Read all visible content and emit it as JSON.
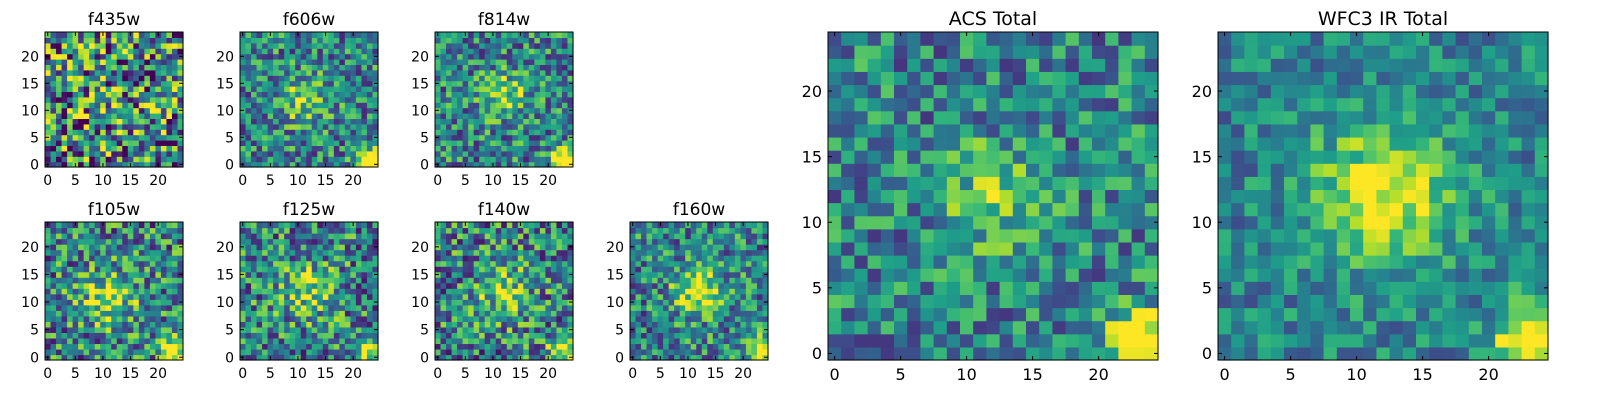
{
  "chart_data": [
    {
      "type": "heatmap",
      "title": "f435w",
      "xlim": [
        0,
        24
      ],
      "ylim": [
        0,
        24
      ],
      "xticks": [
        0,
        5,
        10,
        15,
        20
      ],
      "yticks": [
        0,
        5,
        10,
        15,
        20
      ],
      "grid": false,
      "colormap": "viridis",
      "seed": 11,
      "noise": 0.55,
      "blobs": [
        {
          "x": 12,
          "y": 12,
          "sigma": 6,
          "amp": 0.1
        }
      ]
    },
    {
      "type": "heatmap",
      "title": "f606w",
      "xlim": [
        0,
        24
      ],
      "ylim": [
        0,
        24
      ],
      "xticks": [
        0,
        5,
        10,
        15,
        20
      ],
      "yticks": [
        0,
        5,
        10,
        15,
        20
      ],
      "grid": false,
      "colormap": "viridis",
      "seed": 23,
      "noise": 0.35,
      "blobs": [
        {
          "x": 11,
          "y": 12,
          "sigma": 3,
          "amp": 0.35
        },
        {
          "x": 23,
          "y": 0.5,
          "sigma": 1.6,
          "amp": 0.9
        }
      ]
    },
    {
      "type": "heatmap",
      "title": "f814w",
      "xlim": [
        0,
        24
      ],
      "ylim": [
        0,
        24
      ],
      "xticks": [
        0,
        5,
        10,
        15,
        20
      ],
      "yticks": [
        0,
        5,
        10,
        15,
        20
      ],
      "grid": false,
      "colormap": "viridis",
      "seed": 37,
      "noise": 0.35,
      "blobs": [
        {
          "x": 12,
          "y": 13,
          "sigma": 3,
          "amp": 0.35
        },
        {
          "x": 23,
          "y": 0.5,
          "sigma": 1.6,
          "amp": 0.9
        }
      ]
    },
    {
      "type": "heatmap",
      "title": "f105w",
      "xlim": [
        0,
        24
      ],
      "ylim": [
        0,
        24
      ],
      "xticks": [
        0,
        5,
        10,
        15,
        20
      ],
      "yticks": [
        0,
        5,
        10,
        15,
        20
      ],
      "grid": false,
      "colormap": "viridis",
      "seed": 41,
      "noise": 0.4,
      "blobs": [
        {
          "x": 11,
          "y": 11,
          "sigma": 3.5,
          "amp": 0.4
        },
        {
          "x": 23,
          "y": 1,
          "sigma": 1.8,
          "amp": 0.7
        }
      ]
    },
    {
      "type": "heatmap",
      "title": "f125w",
      "xlim": [
        0,
        24
      ],
      "ylim": [
        0,
        24
      ],
      "xticks": [
        0,
        5,
        10,
        15,
        20
      ],
      "yticks": [
        0,
        5,
        10,
        15,
        20
      ],
      "grid": false,
      "colormap": "viridis",
      "seed": 53,
      "noise": 0.4,
      "blobs": [
        {
          "x": 12,
          "y": 12,
          "sigma": 3.5,
          "amp": 0.35
        },
        {
          "x": 23,
          "y": 1,
          "sigma": 1.8,
          "amp": 0.6
        }
      ]
    },
    {
      "type": "heatmap",
      "title": "f140w",
      "xlim": [
        0,
        24
      ],
      "ylim": [
        0,
        24
      ],
      "xticks": [
        0,
        5,
        10,
        15,
        20
      ],
      "yticks": [
        0,
        5,
        10,
        15,
        20
      ],
      "grid": false,
      "colormap": "viridis",
      "seed": 67,
      "noise": 0.4,
      "blobs": [
        {
          "x": 12,
          "y": 12,
          "sigma": 3.5,
          "amp": 0.35
        },
        {
          "x": 23,
          "y": 1,
          "sigma": 1.8,
          "amp": 0.6
        }
      ]
    },
    {
      "type": "heatmap",
      "title": "f160w",
      "xlim": [
        0,
        24
      ],
      "ylim": [
        0,
        24
      ],
      "xticks": [
        0,
        5,
        10,
        15,
        20
      ],
      "yticks": [
        0,
        5,
        10,
        15,
        20
      ],
      "grid": false,
      "colormap": "viridis",
      "seed": 79,
      "noise": 0.35,
      "blobs": [
        {
          "x": 12,
          "y": 12,
          "sigma": 3,
          "amp": 0.55
        },
        {
          "x": 23,
          "y": 1,
          "sigma": 1.8,
          "amp": 0.7
        }
      ]
    },
    {
      "type": "heatmap",
      "title": "ACS Total",
      "xlim": [
        0,
        24
      ],
      "ylim": [
        0,
        24
      ],
      "xticks": [
        0,
        5,
        10,
        15,
        20
      ],
      "yticks": [
        0,
        5,
        10,
        15,
        20
      ],
      "grid": false,
      "colormap": "viridis",
      "seed": 97,
      "noise": 0.3,
      "blobs": [
        {
          "x": 12,
          "y": 12,
          "sigma": 2.6,
          "amp": 0.35
        },
        {
          "x": 23,
          "y": 1,
          "sigma": 1.6,
          "amp": 0.85
        }
      ]
    },
    {
      "type": "heatmap",
      "title": "WFC3 IR Total",
      "xlim": [
        0,
        24
      ],
      "ylim": [
        0,
        24
      ],
      "xticks": [
        0,
        5,
        10,
        15,
        20
      ],
      "yticks": [
        0,
        5,
        10,
        15,
        20
      ],
      "grid": false,
      "colormap": "viridis",
      "seed": 113,
      "noise": 0.22,
      "blobs": [
        {
          "x": 12,
          "y": 12,
          "sigma": 3.6,
          "amp": 0.55
        },
        {
          "x": 23,
          "y": 1,
          "sigma": 1.8,
          "amp": 0.7
        }
      ]
    }
  ]
}
